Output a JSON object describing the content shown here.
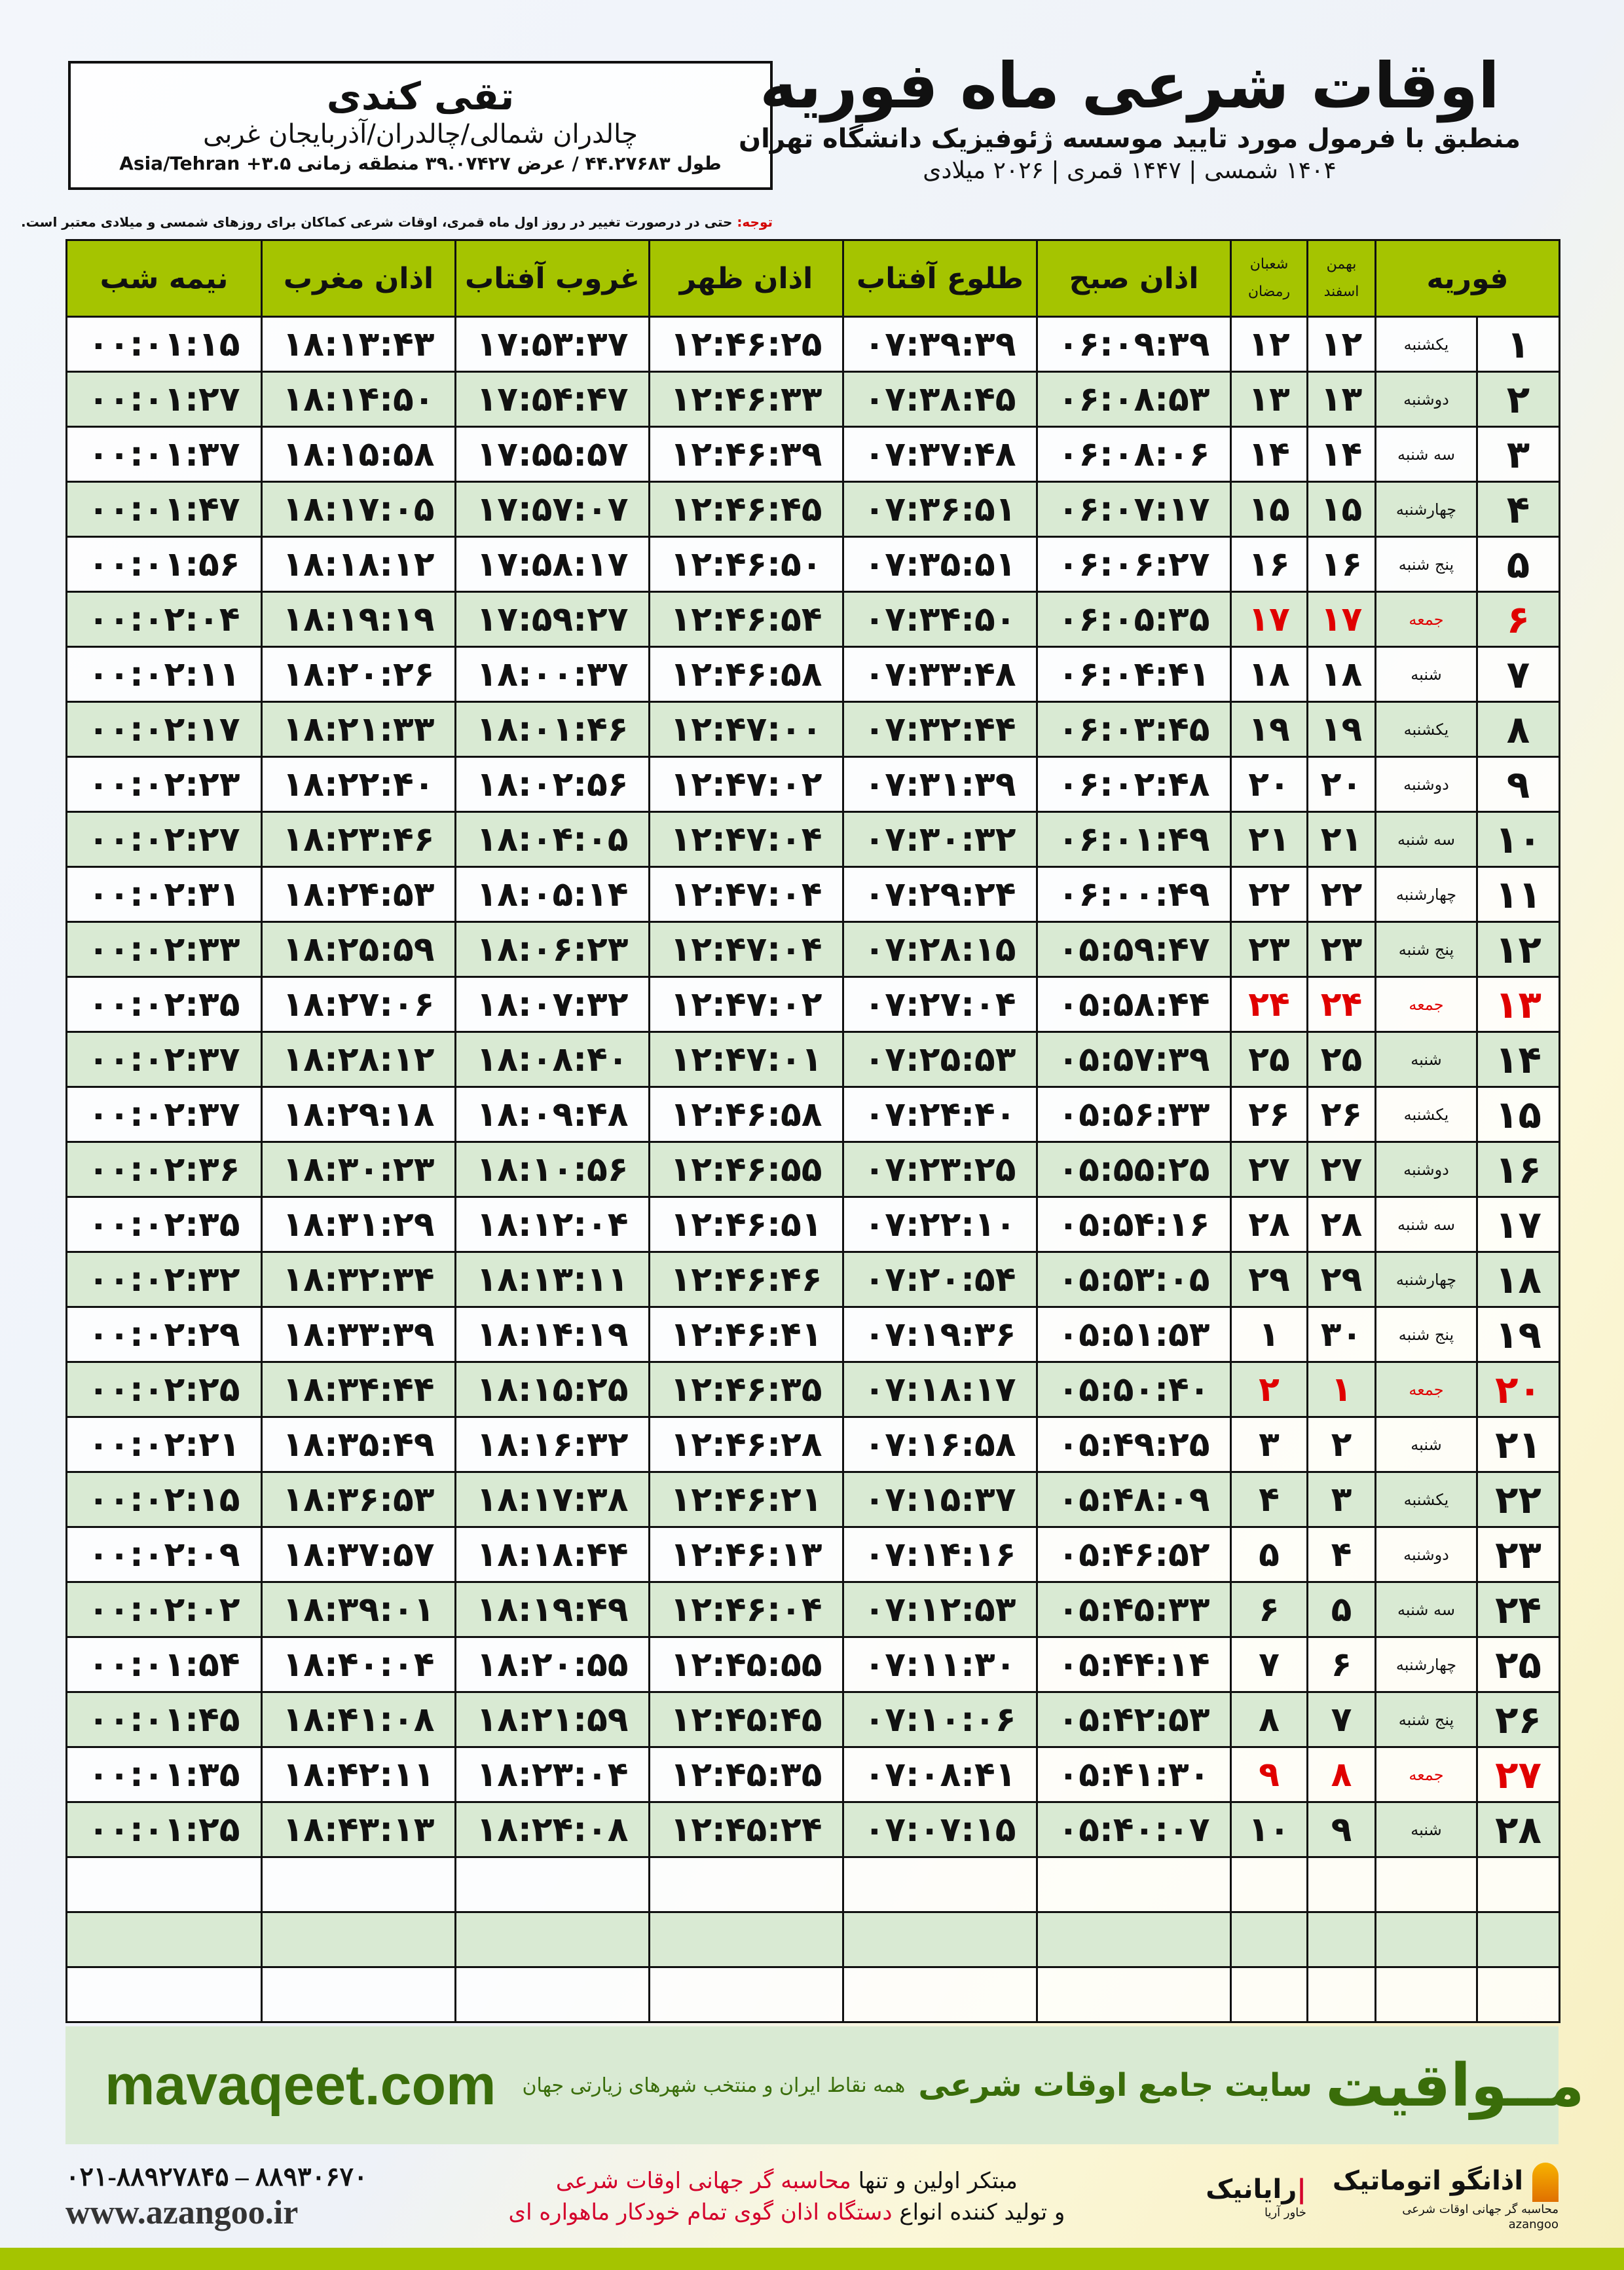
{
  "header": {
    "title": "اوقات شرعی ماه فوریه",
    "subtitle": "منطبق با فرمول مورد تایید موسسه ژئوفیزیک دانشگاه تهران",
    "years": "۱۴۰۴ شمسی | ۱۴۴۷ قمری | ۲۰۲۶ میلادی",
    "location": {
      "name": "تقی کندی",
      "region": "چالدران شمالی/چالدران/آذربایجان غربی",
      "coords": "طول ۴۴.۲۷۶۸۳ / عرض ۳۹.۰۷۴۲۷ منطقه زمانی ۳.۵+ Asia/Tehran"
    },
    "note_label": "توجه:",
    "note": " حتی در درصورت تغییر در روز اول ماه قمری، اوقات شرعی کماکان برای روزهای شمسی و میلادی معتبر است."
  },
  "table": {
    "headers": {
      "month": "فوریه",
      "shamsi_top": "بهمن",
      "shamsi_bottom": "اسفند",
      "qamari_top": "شعبان",
      "qamari_bottom": "رمضان",
      "fajr": "اذان صبح",
      "sunrise": "طلوع آفتاب",
      "dhuhr": "اذان ظهر",
      "sunset": "غروب آفتاب",
      "maghrib": "اذان مغرب",
      "midnight": "نیمه شب"
    },
    "highlight_color": "#e00000",
    "rows": [
      {
        "day": "۱",
        "weekday": "یکشنبه",
        "shamsi": "۱۲",
        "qamari": "۱۲",
        "fajr": "۰۶:۰۹:۳۹",
        "sunrise": "۰۷:۳۹:۳۹",
        "dhuhr": "۱۲:۴۶:۲۵",
        "sunset": "۱۷:۵۳:۳۷",
        "maghrib": "۱۸:۱۳:۴۳",
        "midnight": "۰۰:۰۱:۱۵"
      },
      {
        "day": "۲",
        "weekday": "دوشنبه",
        "shamsi": "۱۳",
        "qamari": "۱۳",
        "fajr": "۰۶:۰۸:۵۳",
        "sunrise": "۰۷:۳۸:۴۵",
        "dhuhr": "۱۲:۴۶:۳۳",
        "sunset": "۱۷:۵۴:۴۷",
        "maghrib": "۱۸:۱۴:۵۰",
        "midnight": "۰۰:۰۱:۲۷"
      },
      {
        "day": "۳",
        "weekday": "سه شنبه",
        "shamsi": "۱۴",
        "qamari": "۱۴",
        "fajr": "۰۶:۰۸:۰۶",
        "sunrise": "۰۷:۳۷:۴۸",
        "dhuhr": "۱۲:۴۶:۳۹",
        "sunset": "۱۷:۵۵:۵۷",
        "maghrib": "۱۸:۱۵:۵۸",
        "midnight": "۰۰:۰۱:۳۷"
      },
      {
        "day": "۴",
        "weekday": "چهارشنبه",
        "shamsi": "۱۵",
        "qamari": "۱۵",
        "fajr": "۰۶:۰۷:۱۷",
        "sunrise": "۰۷:۳۶:۵۱",
        "dhuhr": "۱۲:۴۶:۴۵",
        "sunset": "۱۷:۵۷:۰۷",
        "maghrib": "۱۸:۱۷:۰۵",
        "midnight": "۰۰:۰۱:۴۷"
      },
      {
        "day": "۵",
        "weekday": "پنج شنبه",
        "shamsi": "۱۶",
        "qamari": "۱۶",
        "fajr": "۰۶:۰۶:۲۷",
        "sunrise": "۰۷:۳۵:۵۱",
        "dhuhr": "۱۲:۴۶:۵۰",
        "sunset": "۱۷:۵۸:۱۷",
        "maghrib": "۱۸:۱۸:۱۲",
        "midnight": "۰۰:۰۱:۵۶"
      },
      {
        "day": "۶",
        "weekday": "جمعه",
        "holiday": true,
        "shamsi": "۱۷",
        "qamari": "۱۷",
        "fajr": "۰۶:۰۵:۳۵",
        "sunrise": "۰۷:۳۴:۵۰",
        "dhuhr": "۱۲:۴۶:۵۴",
        "sunset": "۱۷:۵۹:۲۷",
        "maghrib": "۱۸:۱۹:۱۹",
        "midnight": "۰۰:۰۲:۰۴"
      },
      {
        "day": "۷",
        "weekday": "شنبه",
        "shamsi": "۱۸",
        "qamari": "۱۸",
        "fajr": "۰۶:۰۴:۴۱",
        "sunrise": "۰۷:۳۳:۴۸",
        "dhuhr": "۱۲:۴۶:۵۸",
        "sunset": "۱۸:۰۰:۳۷",
        "maghrib": "۱۸:۲۰:۲۶",
        "midnight": "۰۰:۰۲:۱۱"
      },
      {
        "day": "۸",
        "weekday": "یکشنبه",
        "shamsi": "۱۹",
        "qamari": "۱۹",
        "fajr": "۰۶:۰۳:۴۵",
        "sunrise": "۰۷:۳۲:۴۴",
        "dhuhr": "۱۲:۴۷:۰۰",
        "sunset": "۱۸:۰۱:۴۶",
        "maghrib": "۱۸:۲۱:۳۳",
        "midnight": "۰۰:۰۲:۱۷"
      },
      {
        "day": "۹",
        "weekday": "دوشنبه",
        "shamsi": "۲۰",
        "qamari": "۲۰",
        "fajr": "۰۶:۰۲:۴۸",
        "sunrise": "۰۷:۳۱:۳۹",
        "dhuhr": "۱۲:۴۷:۰۲",
        "sunset": "۱۸:۰۲:۵۶",
        "maghrib": "۱۸:۲۲:۴۰",
        "midnight": "۰۰:۰۲:۲۳"
      },
      {
        "day": "۱۰",
        "weekday": "سه شنبه",
        "shamsi": "۲۱",
        "qamari": "۲۱",
        "fajr": "۰۶:۰۱:۴۹",
        "sunrise": "۰۷:۳۰:۳۲",
        "dhuhr": "۱۲:۴۷:۰۴",
        "sunset": "۱۸:۰۴:۰۵",
        "maghrib": "۱۸:۲۳:۴۶",
        "midnight": "۰۰:۰۲:۲۷"
      },
      {
        "day": "۱۱",
        "weekday": "چهارشنبه",
        "shamsi": "۲۲",
        "qamari": "۲۲",
        "fajr": "۰۶:۰۰:۴۹",
        "sunrise": "۰۷:۲۹:۲۴",
        "dhuhr": "۱۲:۴۷:۰۴",
        "sunset": "۱۸:۰۵:۱۴",
        "maghrib": "۱۸:۲۴:۵۳",
        "midnight": "۰۰:۰۲:۳۱"
      },
      {
        "day": "۱۲",
        "weekday": "پنج شنبه",
        "shamsi": "۲۳",
        "qamari": "۲۳",
        "fajr": "۰۵:۵۹:۴۷",
        "sunrise": "۰۷:۲۸:۱۵",
        "dhuhr": "۱۲:۴۷:۰۴",
        "sunset": "۱۸:۰۶:۲۳",
        "maghrib": "۱۸:۲۵:۵۹",
        "midnight": "۰۰:۰۲:۳۳"
      },
      {
        "day": "۱۳",
        "weekday": "جمعه",
        "holiday": true,
        "shamsi": "۲۴",
        "qamari": "۲۴",
        "fajr": "۰۵:۵۸:۴۴",
        "sunrise": "۰۷:۲۷:۰۴",
        "dhuhr": "۱۲:۴۷:۰۲",
        "sunset": "۱۸:۰۷:۳۲",
        "maghrib": "۱۸:۲۷:۰۶",
        "midnight": "۰۰:۰۲:۳۵"
      },
      {
        "day": "۱۴",
        "weekday": "شنبه",
        "shamsi": "۲۵",
        "qamari": "۲۵",
        "fajr": "۰۵:۵۷:۳۹",
        "sunrise": "۰۷:۲۵:۵۳",
        "dhuhr": "۱۲:۴۷:۰۱",
        "sunset": "۱۸:۰۸:۴۰",
        "maghrib": "۱۸:۲۸:۱۲",
        "midnight": "۰۰:۰۲:۳۷"
      },
      {
        "day": "۱۵",
        "weekday": "یکشنبه",
        "shamsi": "۲۶",
        "qamari": "۲۶",
        "fajr": "۰۵:۵۶:۳۳",
        "sunrise": "۰۷:۲۴:۴۰",
        "dhuhr": "۱۲:۴۶:۵۸",
        "sunset": "۱۸:۰۹:۴۸",
        "maghrib": "۱۸:۲۹:۱۸",
        "midnight": "۰۰:۰۲:۳۷"
      },
      {
        "day": "۱۶",
        "weekday": "دوشنبه",
        "shamsi": "۲۷",
        "qamari": "۲۷",
        "fajr": "۰۵:۵۵:۲۵",
        "sunrise": "۰۷:۲۳:۲۵",
        "dhuhr": "۱۲:۴۶:۵۵",
        "sunset": "۱۸:۱۰:۵۶",
        "maghrib": "۱۸:۳۰:۲۳",
        "midnight": "۰۰:۰۲:۳۶"
      },
      {
        "day": "۱۷",
        "weekday": "سه شنبه",
        "shamsi": "۲۸",
        "qamari": "۲۸",
        "fajr": "۰۵:۵۴:۱۶",
        "sunrise": "۰۷:۲۲:۱۰",
        "dhuhr": "۱۲:۴۶:۵۱",
        "sunset": "۱۸:۱۲:۰۴",
        "maghrib": "۱۸:۳۱:۲۹",
        "midnight": "۰۰:۰۲:۳۵"
      },
      {
        "day": "۱۸",
        "weekday": "چهارشنبه",
        "shamsi": "۲۹",
        "qamari": "۲۹",
        "fajr": "۰۵:۵۳:۰۵",
        "sunrise": "۰۷:۲۰:۵۴",
        "dhuhr": "۱۲:۴۶:۴۶",
        "sunset": "۱۸:۱۳:۱۱",
        "maghrib": "۱۸:۳۲:۳۴",
        "midnight": "۰۰:۰۲:۳۲"
      },
      {
        "day": "۱۹",
        "weekday": "پنج شنبه",
        "shamsi": "۳۰",
        "qamari": "۱",
        "fajr": "۰۵:۵۱:۵۳",
        "sunrise": "۰۷:۱۹:۳۶",
        "dhuhr": "۱۲:۴۶:۴۱",
        "sunset": "۱۸:۱۴:۱۹",
        "maghrib": "۱۸:۳۳:۳۹",
        "midnight": "۰۰:۰۲:۲۹"
      },
      {
        "day": "۲۰",
        "weekday": "جمعه",
        "holiday": true,
        "shamsi": "۱",
        "qamari": "۲",
        "fajr": "۰۵:۵۰:۴۰",
        "sunrise": "۰۷:۱۸:۱۷",
        "dhuhr": "۱۲:۴۶:۳۵",
        "sunset": "۱۸:۱۵:۲۵",
        "maghrib": "۱۸:۳۴:۴۴",
        "midnight": "۰۰:۰۲:۲۵"
      },
      {
        "day": "۲۱",
        "weekday": "شنبه",
        "shamsi": "۲",
        "qamari": "۳",
        "fajr": "۰۵:۴۹:۲۵",
        "sunrise": "۰۷:۱۶:۵۸",
        "dhuhr": "۱۲:۴۶:۲۸",
        "sunset": "۱۸:۱۶:۳۲",
        "maghrib": "۱۸:۳۵:۴۹",
        "midnight": "۰۰:۰۲:۲۱"
      },
      {
        "day": "۲۲",
        "weekday": "یکشنبه",
        "shamsi": "۳",
        "qamari": "۴",
        "fajr": "۰۵:۴۸:۰۹",
        "sunrise": "۰۷:۱۵:۳۷",
        "dhuhr": "۱۲:۴۶:۲۱",
        "sunset": "۱۸:۱۷:۳۸",
        "maghrib": "۱۸:۳۶:۵۳",
        "midnight": "۰۰:۰۲:۱۵"
      },
      {
        "day": "۲۳",
        "weekday": "دوشنبه",
        "shamsi": "۴",
        "qamari": "۵",
        "fajr": "۰۵:۴۶:۵۲",
        "sunrise": "۰۷:۱۴:۱۶",
        "dhuhr": "۱۲:۴۶:۱۳",
        "sunset": "۱۸:۱۸:۴۴",
        "maghrib": "۱۸:۳۷:۵۷",
        "midnight": "۰۰:۰۲:۰۹"
      },
      {
        "day": "۲۴",
        "weekday": "سه شنبه",
        "shamsi": "۵",
        "qamari": "۶",
        "fajr": "۰۵:۴۵:۳۳",
        "sunrise": "۰۷:۱۲:۵۳",
        "dhuhr": "۱۲:۴۶:۰۴",
        "sunset": "۱۸:۱۹:۴۹",
        "maghrib": "۱۸:۳۹:۰۱",
        "midnight": "۰۰:۰۲:۰۲"
      },
      {
        "day": "۲۵",
        "weekday": "چهارشنبه",
        "shamsi": "۶",
        "qamari": "۷",
        "fajr": "۰۵:۴۴:۱۴",
        "sunrise": "۰۷:۱۱:۳۰",
        "dhuhr": "۱۲:۴۵:۵۵",
        "sunset": "۱۸:۲۰:۵۵",
        "maghrib": "۱۸:۴۰:۰۴",
        "midnight": "۰۰:۰۱:۵۴"
      },
      {
        "day": "۲۶",
        "weekday": "پنج شنبه",
        "shamsi": "۷",
        "qamari": "۸",
        "fajr": "۰۵:۴۲:۵۳",
        "sunrise": "۰۷:۱۰:۰۶",
        "dhuhr": "۱۲:۴۵:۴۵",
        "sunset": "۱۸:۲۱:۵۹",
        "maghrib": "۱۸:۴۱:۰۸",
        "midnight": "۰۰:۰۱:۴۵"
      },
      {
        "day": "۲۷",
        "weekday": "جمعه",
        "holiday": true,
        "shamsi": "۸",
        "qamari": "۹",
        "fajr": "۰۵:۴۱:۳۰",
        "sunrise": "۰۷:۰۸:۴۱",
        "dhuhr": "۱۲:۴۵:۳۵",
        "sunset": "۱۸:۲۳:۰۴",
        "maghrib": "۱۸:۴۲:۱۱",
        "midnight": "۰۰:۰۱:۳۵"
      },
      {
        "day": "۲۸",
        "weekday": "شنبه",
        "shamsi": "۹",
        "qamari": "۱۰",
        "fajr": "۰۵:۴۰:۰۷",
        "sunrise": "۰۷:۰۷:۱۵",
        "dhuhr": "۱۲:۴۵:۲۴",
        "sunset": "۱۸:۲۴:۰۸",
        "maghrib": "۱۸:۴۳:۱۳",
        "midnight": "۰۰:۰۱:۲۵"
      }
    ]
  },
  "footer": {
    "brand": "مــواقیت",
    "tagline": "سایت جامع اوقات شرعی",
    "tagline2": "همه نقاط ایران و منتخب شهرهای زیارتی جهان",
    "site": "mavaqeet.com",
    "phones": "۰۲۱-۸۸۹۲۷۸۴۵ – ۸۸۹۳۰۶۷۰",
    "web": "www.azangoo.ir",
    "promo1a": "مبتکر اولین و تنها ",
    "promo1b": "محاسبه گر جهانی اوقات شرعی",
    "promo2a": "و تولید کننده انواع ",
    "promo2b": "دستگاه اذان گوی تمام خودکار ماهواره ای",
    "logo1": "رایانیک",
    "logo1_small": "خاور آریا",
    "logo2": "اذانگو اتوماتیک",
    "logo2_small": "محاسبه گر جهانی اوقات شرعی",
    "logo2_latin": "azangoo"
  }
}
